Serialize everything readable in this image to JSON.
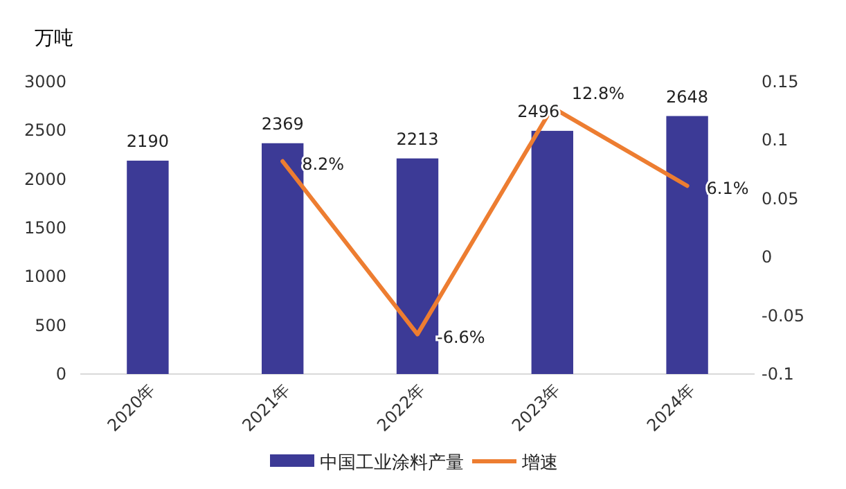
{
  "chart_data": {
    "type": "bar",
    "ylabel": "万吨",
    "categories": [
      "2020年",
      "2021年",
      "2022年",
      "2023年",
      "2024年"
    ],
    "series": [
      {
        "name": "中国工业涂料产量",
        "color": "#3c3a96",
        "values": [
          2190,
          2369,
          2213,
          2496,
          2648
        ],
        "data_labels": true
      },
      {
        "name": "增速",
        "type": "line",
        "axis": "y2",
        "color": "#ed7d31",
        "values": [
          null,
          0.082,
          -0.066,
          0.128,
          0.061
        ],
        "value_labels": [
          null,
          "8.2%",
          "-6.6%",
          "12.8%",
          "6.1%"
        ]
      }
    ],
    "ylim": [
      0,
      3000
    ],
    "yticks": [
      0,
      500,
      1000,
      1500,
      2000,
      2500,
      3000
    ],
    "y2lim": [
      -0.1,
      0.15
    ],
    "y2ticks": [
      -0.1,
      -0.05,
      0,
      0.05,
      0.1,
      0.15
    ],
    "legend": "bottom",
    "marker": "none",
    "line_style": "solid"
  }
}
